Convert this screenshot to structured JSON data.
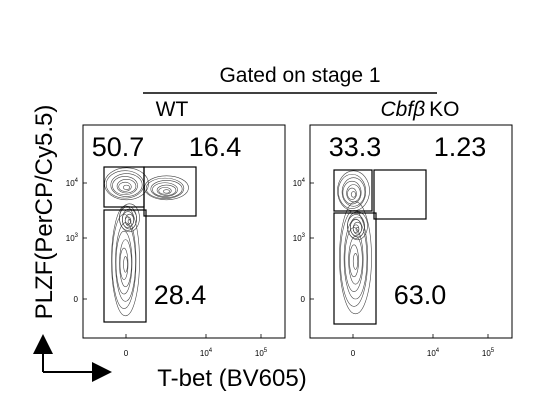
{
  "header": {
    "title": "Gated on stage 1"
  },
  "y_label": "PLZF(PerCP/Cy5.5)",
  "x_label": "T-bet (BV605)",
  "panels": [
    {
      "title": "WT",
      "gates": [
        "50.7",
        "16.4",
        "28.4"
      ],
      "yticks": [
        {
          "base": "10",
          "exp": "4"
        },
        {
          "base": "10",
          "exp": "3"
        },
        {
          "text": "0"
        }
      ],
      "xticks": [
        {
          "text": "0"
        },
        {
          "base": "10",
          "exp": "4"
        },
        {
          "base": "10",
          "exp": "5"
        }
      ]
    },
    {
      "title_italic": "Cbfβ",
      "title": "KO",
      "gates": [
        "33.3",
        "1.23",
        "63.0"
      ],
      "yticks": [
        {
          "base": "10",
          "exp": "4"
        },
        {
          "base": "10",
          "exp": "3"
        },
        {
          "text": "0"
        }
      ],
      "xticks": [
        {
          "text": "0"
        },
        {
          "base": "10",
          "exp": "4"
        },
        {
          "base": "10",
          "exp": "5"
        }
      ]
    }
  ]
}
